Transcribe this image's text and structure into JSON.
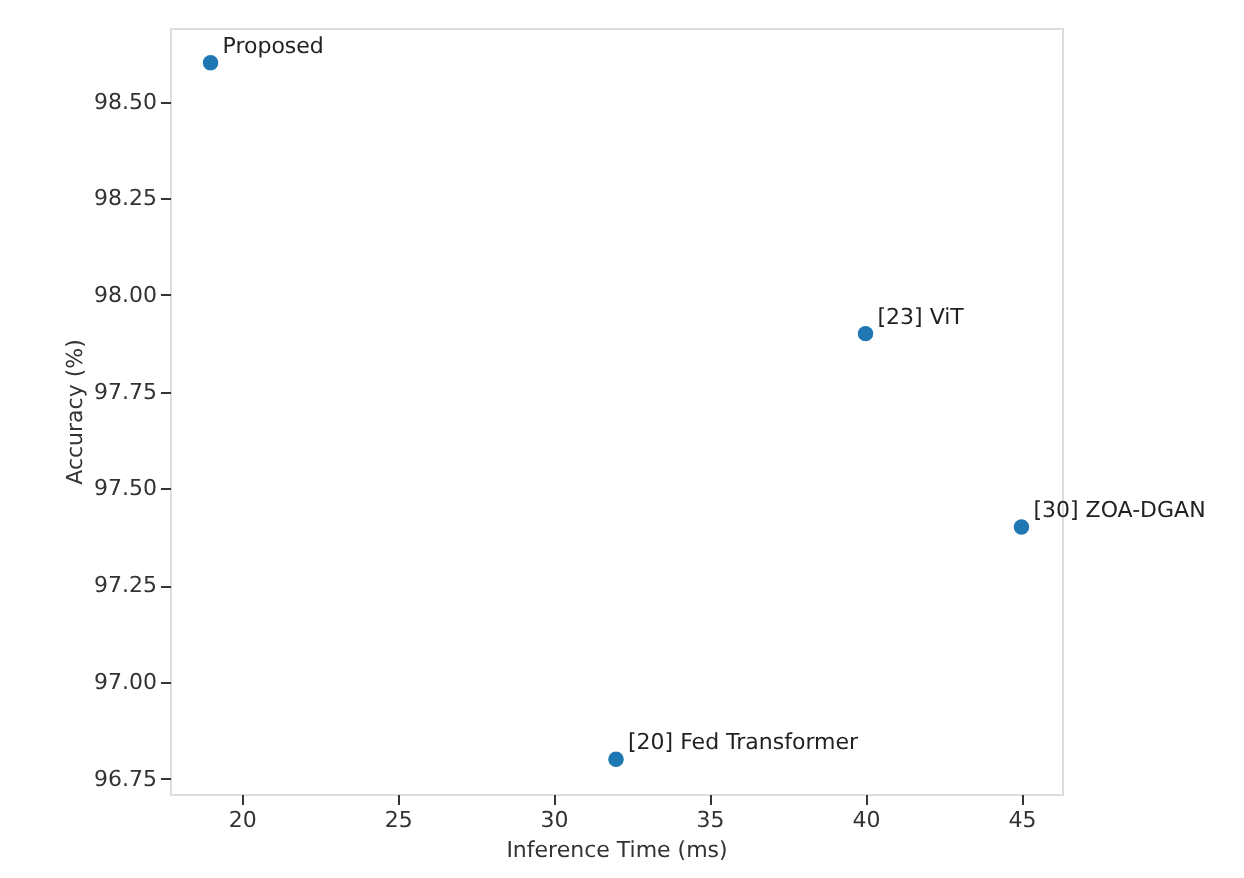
{
  "chart_data": {
    "type": "scatter",
    "xlabel": "Inference Time (ms)",
    "ylabel": "Accuracy (%)",
    "x": [
      19,
      40,
      45,
      32
    ],
    "series": [
      {
        "color": "#1f77b4",
        "values": [
          98.6,
          97.9,
          97.4,
          96.8
        ]
      }
    ],
    "marker": "circle",
    "grid": false,
    "xlim": [
      17.7,
      46.3
    ],
    "xticks": [
      20,
      25,
      30,
      35,
      40,
      45
    ],
    "ylim": [
      96.71,
      98.69
    ],
    "yticks": [
      {
        "value": 96.75,
        "label": "96.75"
      },
      {
        "value": 97.0,
        "label": "97.00"
      },
      {
        "value": 97.25,
        "label": "97.25"
      },
      {
        "value": 97.5,
        "label": "97.50"
      },
      {
        "value": 97.75,
        "label": "97.75"
      },
      {
        "value": 98.0,
        "label": "98.00"
      },
      {
        "value": 98.25,
        "label": "98.25"
      },
      {
        "value": 98.5,
        "label": "98.50"
      }
    ],
    "annotations": [
      {
        "text": "Proposed",
        "x": 19,
        "y": 98.6
      },
      {
        "text": "[23] ViT",
        "x": 40,
        "y": 97.9
      },
      {
        "text": "[30] ZOA-DGAN",
        "x": 45,
        "y": 97.4
      },
      {
        "text": "[20] Fed Transformer",
        "x": 32,
        "y": 96.8
      }
    ]
  }
}
